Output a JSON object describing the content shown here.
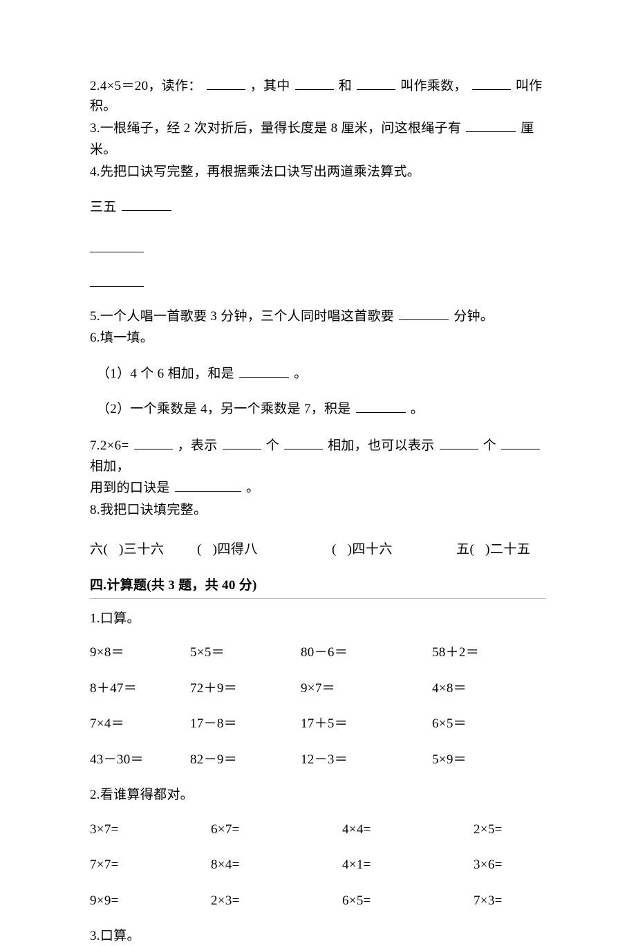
{
  "lines": {
    "l2": "2.4×5＝20，读作：",
    "l2b": "，其中",
    "l2c": "和",
    "l2d": "叫作乘数，",
    "l2e": "叫作积。",
    "l3a": "3.一根绳子，经 2 次对折后，量得长度是 8 厘米，问这根绳子有",
    "l3b": "厘",
    "l3c": "米。",
    "l4": "4.先把口诀写完整，再根据乘法口诀写出两道乘法算式。",
    "l4sanwu": "三五",
    "l5a": "5.一个人唱一首歌要 3 分钟，三个人同时唱这首歌要",
    "l5b": "分钟。",
    "l6": "6.填一填。",
    "l6_1a": "（1）4 个 6 相加，和是",
    "l6_1b": "。",
    "l6_2a": "（2）一个乘数是 4，另一个乘数是 7，积是",
    "l6_2b": "。",
    "l7a": "7.2×6=",
    "l7b": "，表示",
    "l7c": "个",
    "l7d": "相加，也可以表示",
    "l7e": "个",
    "l7f": "相加，",
    "l7g": "用到的口诀是",
    "l7h": "。",
    "l8": "8.我把口诀填完整。",
    "l8a": "六(",
    "l8a2": ")三十六",
    "l8b": "(",
    "l8b2": ")四得八",
    "l8c": "(",
    "l8c2": ")四十六",
    "l8d": "五(",
    "l8d2": ")二十五"
  },
  "sectionTitle": "四.计算题(共 3 题，共 40 分)",
  "calc1": {
    "title": "1.口算。",
    "rows": [
      [
        "9×8＝",
        "5×5＝",
        "80－6＝",
        "58＋2＝"
      ],
      [
        "8＋47＝",
        "72＋9＝",
        "9×7＝",
        "4×8＝"
      ],
      [
        "7×4＝",
        "17－8＝",
        "17＋5＝",
        "6×5＝"
      ],
      [
        "43－30＝",
        "82－9＝",
        "12－3＝",
        "5×9＝"
      ]
    ]
  },
  "calc2": {
    "title": "2.看谁算得都对。",
    "rows": [
      [
        "3×7=",
        "6×7=",
        "4×4=",
        "2×5="
      ],
      [
        "7×7=",
        "8×4=",
        "4×1=",
        "3×6="
      ],
      [
        "9×9=",
        "2×3=",
        "6×5=",
        "7×3="
      ]
    ]
  },
  "calc3": {
    "title": "3.口算。"
  }
}
